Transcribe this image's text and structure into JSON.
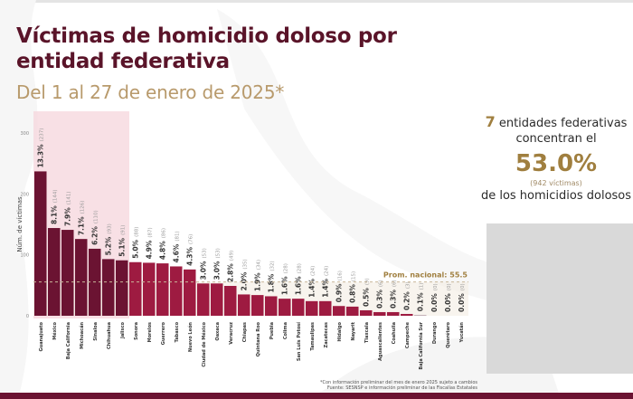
{
  "header": {
    "title_line1": "Víctimas de homicidio doloso por",
    "title_line2": "entidad federativa",
    "subtitle": "Del 1 al 27 de enero de 2025*"
  },
  "summary": {
    "count": "7",
    "text1": " entidades federativas",
    "text2": "concentran el",
    "percent": "53.0%",
    "victims": "(942 víctimas)",
    "text3": "de los homicidios dolosos"
  },
  "footnote": {
    "line1": "*Con información preliminar del mes de enero 2025 sujeto a cambios",
    "line2": "Fuente: SESNSP e información preliminar de las Fiscalías Estatales"
  },
  "colors": {
    "top": "#6b1332",
    "rest": "#9e1b41",
    "highlight": "#f6d6dc",
    "avg_line": "#c9b89a",
    "avg_text": "#a07f3f"
  },
  "chart_data": {
    "type": "bar",
    "title": "Víctimas de homicidio doloso por entidad federativa",
    "ylabel": "Núm. de víctimas",
    "xlabel": "",
    "ylim": [
      0,
      300
    ],
    "yticks": [
      0,
      100,
      200,
      300
    ],
    "grid": false,
    "highlight_top_n": 7,
    "average": {
      "label": "Prom. nacional: 55.5",
      "value": 55.5
    },
    "categories": [
      "Guanajuato",
      "México",
      "Baja California",
      "Michoacán",
      "Sinaloa",
      "Chihuahua",
      "Jalisco",
      "Sonora",
      "Morelos",
      "Guerrero",
      "Tabasco",
      "Nuevo León",
      "Ciudad de México",
      "Oaxaca",
      "Veracruz",
      "Chiapas",
      "Quintana Roo",
      "Puebla",
      "Colima",
      "San Luis Potosí",
      "Tamaulipas",
      "Zacatecas",
      "Hidalgo",
      "Nayarit",
      "Tlaxcala",
      "Aguascalientes",
      "Coahuila",
      "Campeche",
      "Baja California Sur",
      "Durango",
      "Querétaro",
      "Yucatán"
    ],
    "values": [
      237,
      144,
      141,
      126,
      110,
      93,
      91,
      88,
      87,
      86,
      81,
      76,
      53,
      53,
      49,
      35,
      34,
      32,
      28,
      28,
      24,
      24,
      16,
      15,
      9,
      6,
      6,
      3,
      1,
      0,
      0,
      0
    ],
    "percents": [
      "13.3%",
      "8.1%",
      "7.9%",
      "7.1%",
      "6.2%",
      "5.2%",
      "5.1%",
      "5.0%",
      "4.9%",
      "4.8%",
      "4.6%",
      "4.3%",
      "3.0%",
      "3.0%",
      "2.8%",
      "2.0%",
      "1.9%",
      "1.8%",
      "1.6%",
      "1.6%",
      "1.4%",
      "1.4%",
      "0.9%",
      "0.8%",
      "0.5%",
      "0.3%",
      "0.3%",
      "0.2%",
      "0.1%",
      "0.0%",
      "0.0%",
      "0.0%"
    ]
  }
}
